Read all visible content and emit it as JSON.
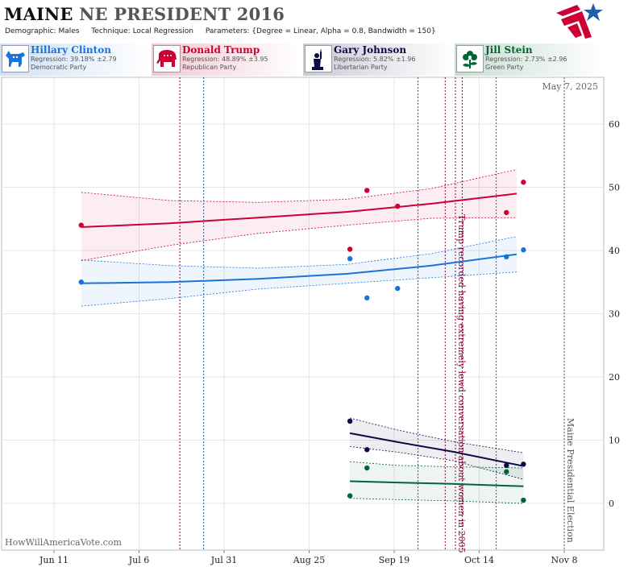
{
  "header": {
    "state": "MAINE",
    "rest": "NE PRESIDENT 2016",
    "demographic_label": "Demographic:",
    "demographic": "Males",
    "technique_label": "Technique:",
    "technique": "Local Regression",
    "parameters_label": "Parameters:",
    "parameters": "{Degree = Linear, Alpha = 0.8, Bandwidth = 150}"
  },
  "candidates": [
    {
      "name": "Hillary Clinton",
      "regression": "Regression: 39.18% ±2.79",
      "party": "Democratic Party",
      "color": "#1a73d9",
      "icon": "donkey-icon"
    },
    {
      "name": "Donald Trump",
      "regression": "Regression: 48.89% ±3.95",
      "party": "Republican Party",
      "color": "#cc0033",
      "icon": "elephant-icon"
    },
    {
      "name": "Gary Johnson",
      "regression": "Regression: 5.82% ±1.96",
      "party": "Libertarian Party",
      "color": "#0b0b4a",
      "icon": "liberty-statue-icon"
    },
    {
      "name": "Jill Stein",
      "regression": "Regression: 2.73% ±2.96",
      "party": "Green Party",
      "color": "#006633",
      "icon": "flower-icon"
    }
  ],
  "chart_data": {
    "type": "line",
    "date_label": "May 7, 2025",
    "watermark": "HowWillAmericaVote.com",
    "x_ticks": [
      "Jun 11",
      "Jul 6",
      "Jul 31",
      "Aug 25",
      "Sep 19",
      "Oct 14",
      "Nov 8"
    ],
    "y_ticks": [
      0,
      10,
      20,
      30,
      40,
      50,
      60
    ],
    "ylim": [
      -5,
      66
    ],
    "grid": true,
    "series": [
      {
        "name": "Hillary Clinton",
        "color": "#1a73d9",
        "line": [
          [
            "2016-06-19",
            34.8
          ],
          [
            "2016-07-15",
            35.0
          ],
          [
            "2016-08-10",
            35.5
          ],
          [
            "2016-09-05",
            36.3
          ],
          [
            "2016-09-30",
            37.6
          ],
          [
            "2016-10-25",
            39.4
          ]
        ],
        "upper": [
          [
            "2016-06-19",
            38.5
          ],
          [
            "2016-07-15",
            37.6
          ],
          [
            "2016-08-10",
            37.2
          ],
          [
            "2016-09-05",
            37.8
          ],
          [
            "2016-09-30",
            39.5
          ],
          [
            "2016-10-25",
            42.2
          ]
        ],
        "lower": [
          [
            "2016-06-19",
            31.2
          ],
          [
            "2016-07-15",
            32.4
          ],
          [
            "2016-08-10",
            33.9
          ],
          [
            "2016-09-05",
            34.8
          ],
          [
            "2016-09-30",
            35.7
          ],
          [
            "2016-10-25",
            36.6
          ]
        ],
        "points": [
          [
            "2016-06-19",
            35.0
          ],
          [
            "2016-09-06",
            38.7
          ],
          [
            "2016-09-11",
            32.5
          ],
          [
            "2016-09-20",
            34.0
          ],
          [
            "2016-10-22",
            39.0
          ],
          [
            "2016-10-27",
            40.1
          ]
        ]
      },
      {
        "name": "Donald Trump",
        "color": "#cc0033",
        "line": [
          [
            "2016-06-19",
            43.7
          ],
          [
            "2016-07-15",
            44.3
          ],
          [
            "2016-08-10",
            45.2
          ],
          [
            "2016-09-05",
            46.1
          ],
          [
            "2016-09-30",
            47.4
          ],
          [
            "2016-10-25",
            49.0
          ]
        ],
        "upper": [
          [
            "2016-06-19",
            49.2
          ],
          [
            "2016-07-15",
            47.9
          ],
          [
            "2016-08-10",
            47.6
          ],
          [
            "2016-09-05",
            48.1
          ],
          [
            "2016-09-30",
            49.8
          ],
          [
            "2016-10-25",
            52.8
          ]
        ],
        "lower": [
          [
            "2016-06-19",
            38.4
          ],
          [
            "2016-07-15",
            40.8
          ],
          [
            "2016-08-10",
            42.7
          ],
          [
            "2016-09-05",
            44.0
          ],
          [
            "2016-09-30",
            45.1
          ],
          [
            "2016-10-25",
            45.2
          ]
        ],
        "points": [
          [
            "2016-06-19",
            44.0
          ],
          [
            "2016-09-06",
            40.2
          ],
          [
            "2016-09-11",
            49.5
          ],
          [
            "2016-09-20",
            47.0
          ],
          [
            "2016-10-22",
            46.0
          ],
          [
            "2016-10-27",
            50.8
          ]
        ]
      },
      {
        "name": "Gary Johnson",
        "color": "#0b0b4a",
        "line": [
          [
            "2016-09-06",
            11.1
          ],
          [
            "2016-09-20",
            9.7
          ],
          [
            "2016-10-06",
            8.2
          ],
          [
            "2016-10-27",
            5.9
          ]
        ],
        "upper": [
          [
            "2016-09-06",
            13.5
          ],
          [
            "2016-09-20",
            11.6
          ],
          [
            "2016-10-06",
            9.8
          ],
          [
            "2016-10-27",
            8.0
          ]
        ],
        "lower": [
          [
            "2016-09-06",
            9.0
          ],
          [
            "2016-09-20",
            8.1
          ],
          [
            "2016-10-06",
            6.8
          ],
          [
            "2016-10-27",
            3.8
          ]
        ],
        "points": [
          [
            "2016-09-06",
            13.0
          ],
          [
            "2016-09-11",
            8.5
          ],
          [
            "2016-10-22",
            6.0
          ],
          [
            "2016-10-27",
            6.2
          ]
        ]
      },
      {
        "name": "Jill Stein",
        "color": "#006633",
        "line": [
          [
            "2016-09-06",
            3.5
          ],
          [
            "2016-09-20",
            3.3
          ],
          [
            "2016-10-06",
            3.1
          ],
          [
            "2016-10-27",
            2.7
          ]
        ],
        "upper": [
          [
            "2016-09-06",
            6.6
          ],
          [
            "2016-09-20",
            6.0
          ],
          [
            "2016-10-06",
            5.8
          ],
          [
            "2016-10-27",
            5.6
          ]
        ],
        "lower": [
          [
            "2016-09-06",
            0.8
          ],
          [
            "2016-09-20",
            0.6
          ],
          [
            "2016-10-06",
            0.4
          ],
          [
            "2016-10-27",
            0.0
          ]
        ],
        "points": [
          [
            "2016-09-06",
            1.2
          ],
          [
            "2016-09-11",
            5.6
          ],
          [
            "2016-10-22",
            5.0
          ],
          [
            "2016-10-27",
            0.5
          ]
        ]
      }
    ],
    "events": [
      {
        "date": "2016-07-18",
        "color": "#990033",
        "label": ""
      },
      {
        "date": "2016-07-25",
        "color": "#1a5fa8",
        "label": ""
      },
      {
        "date": "2016-09-26",
        "color": "#555555",
        "label": ""
      },
      {
        "date": "2016-10-04",
        "color": "#990033",
        "label": ""
      },
      {
        "date": "2016-10-07",
        "color": "#990033",
        "label": "Trump recorded having extremely lewd conversation about women in 2005"
      },
      {
        "date": "2016-10-09",
        "color": "#990033",
        "label": ""
      },
      {
        "date": "2016-10-19",
        "color": "#555555",
        "label": ""
      },
      {
        "date": "2016-11-08",
        "color": "#555555",
        "label": "Maine Presidential Election"
      }
    ]
  }
}
